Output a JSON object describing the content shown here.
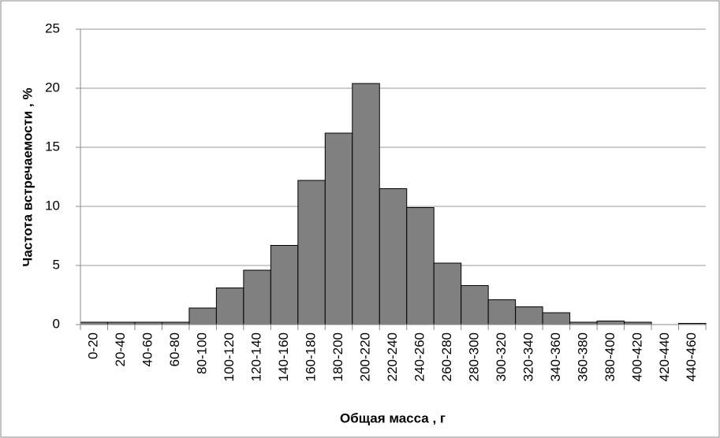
{
  "chart_data": {
    "type": "bar",
    "x_label": "Общая масса , г",
    "y_label": "Частота встречаемости , %",
    "categories": [
      "0-20",
      "20-40",
      "40-60",
      "60-80",
      "80-100",
      "100-120",
      "120-140",
      "140-160",
      "160-180",
      "180-200",
      "200-220",
      "220-240",
      "240-260",
      "260-280",
      "280-300",
      "300-320",
      "320-340",
      "340-360",
      "360-380",
      "380-400",
      "400-420",
      "420-440",
      "440-460"
    ],
    "values": [
      0.2,
      0.2,
      0.2,
      0.2,
      1.4,
      3.1,
      4.6,
      6.7,
      12.2,
      16.2,
      20.4,
      11.5,
      9.9,
      5.2,
      3.3,
      2.1,
      1.5,
      1.0,
      0.2,
      0.3,
      0.2,
      0,
      0.1
    ],
    "color": "#808080",
    "ylim": [
      0,
      25
    ],
    "yticks": [
      0,
      5,
      10,
      15,
      20,
      25
    ],
    "grid": true
  }
}
